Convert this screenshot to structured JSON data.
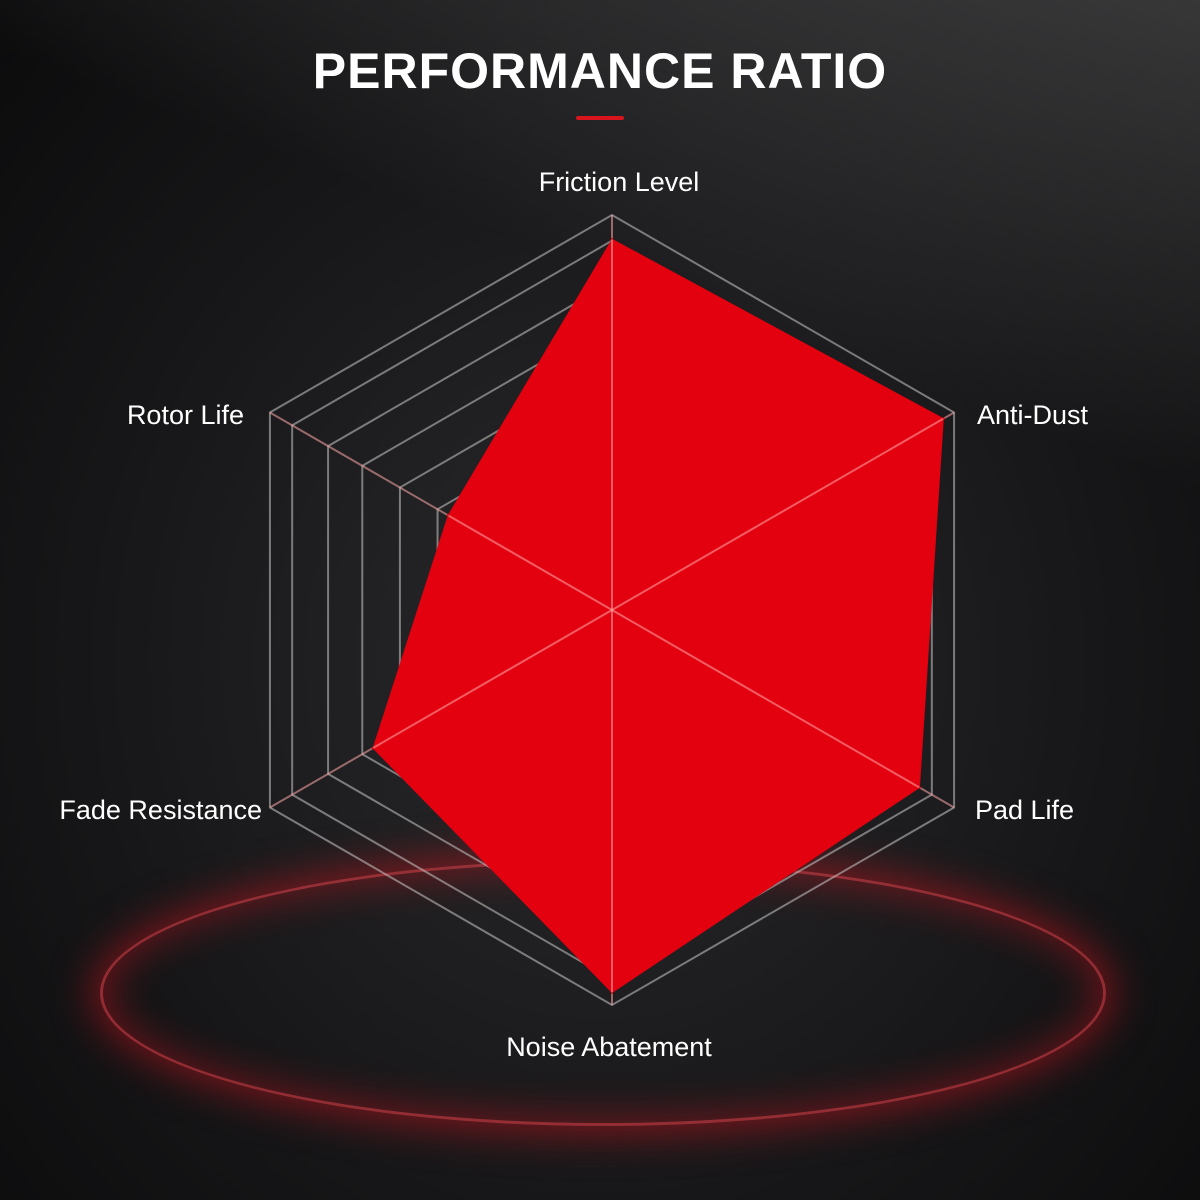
{
  "chart_data": {
    "type": "radar",
    "title": "PERFORMANCE RATIO",
    "categories": [
      "Friction Level",
      "Anti-Dust",
      "Pad Life",
      "Noise Abatement",
      "Fade Resistance",
      "Rotor Life"
    ],
    "values": [
      0.94,
      0.97,
      0.9,
      0.97,
      0.7,
      0.48
    ],
    "range": [
      0,
      1
    ],
    "grid": true,
    "fill_color": "#e3000f",
    "accent_color": "#d8141c"
  }
}
